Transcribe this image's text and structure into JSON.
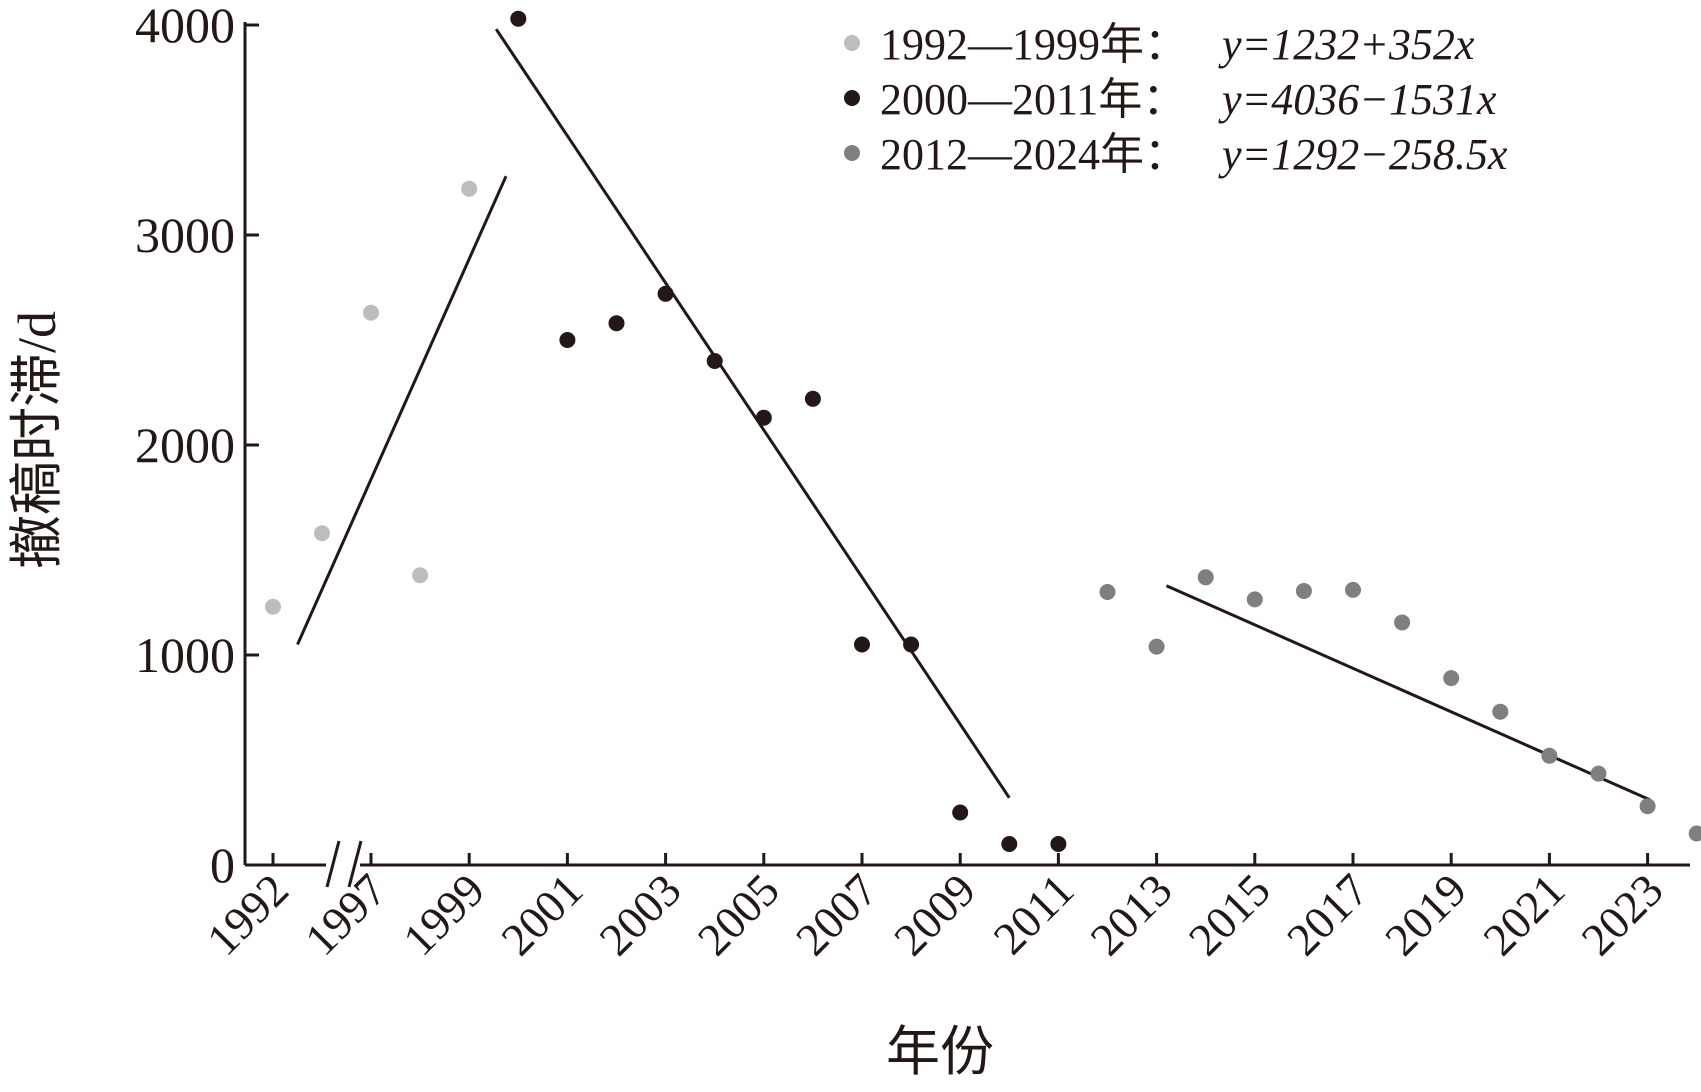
{
  "chart_data": {
    "type": "scatter",
    "xlabel": "年份",
    "ylabel": "撤稿时滞/d",
    "ylim": [
      0,
      4000
    ],
    "y_ticks": [
      "0",
      "1000",
      "2000",
      "3000",
      "4000"
    ],
    "x_tick_labels": [
      "1992",
      "1997",
      "1999",
      "2001",
      "2003",
      "2005",
      "2007",
      "2009",
      "2011",
      "2013",
      "2015",
      "2017",
      "2019",
      "2021",
      "2023"
    ],
    "x_axis_break": "between 1992 and 1997",
    "legend_position": "top-right",
    "grid": false,
    "series": [
      {
        "name": "1992—1999年：",
        "equation": "y=1232+352x",
        "color": "#bdbdbd",
        "points": [
          {
            "year": 1992,
            "value": 1230
          },
          {
            "year": 1996,
            "value": 1580
          },
          {
            "year": 1997,
            "value": 2630
          },
          {
            "year": 1998,
            "value": 1380
          },
          {
            "year": 1999,
            "value": 3220
          }
        ],
        "fit_line": {
          "start": {
            "year": 1992.5,
            "value": 1050
          },
          "end": {
            "year": 1999.75,
            "value": 3280
          }
        }
      },
      {
        "name": "2000—2011年：",
        "equation": "y=4036−1531x",
        "color": "#231815",
        "points": [
          {
            "year": 2000,
            "value": 4030
          },
          {
            "year": 2001,
            "value": 2500
          },
          {
            "year": 2002,
            "value": 2580
          },
          {
            "year": 2003,
            "value": 2720
          },
          {
            "year": 2004,
            "value": 2400
          },
          {
            "year": 2005,
            "value": 2130
          },
          {
            "year": 2006,
            "value": 2220
          },
          {
            "year": 2007,
            "value": 1050
          },
          {
            "year": 2008,
            "value": 1050
          },
          {
            "year": 2009,
            "value": 250
          },
          {
            "year": 2010,
            "value": 100
          },
          {
            "year": 2011,
            "value": 100
          }
        ],
        "fit_line": {
          "start": {
            "year": 1999.55,
            "value": 3980
          },
          "end": {
            "year": 2010,
            "value": 320
          }
        }
      },
      {
        "name": "2012—2024年：",
        "equation": "y=1292−258.5x",
        "color": "#7f7f7f",
        "points": [
          {
            "year": 2012,
            "value": 1300
          },
          {
            "year": 2013,
            "value": 1040
          },
          {
            "year": 2014,
            "value": 1370
          },
          {
            "year": 2015,
            "value": 1265
          },
          {
            "year": 2016,
            "value": 1305
          },
          {
            "year": 2017,
            "value": 1310
          },
          {
            "year": 2018,
            "value": 1155
          },
          {
            "year": 2019,
            "value": 890
          },
          {
            "year": 2020,
            "value": 730
          },
          {
            "year": 2021,
            "value": 520
          },
          {
            "year": 2022,
            "value": 435
          },
          {
            "year": 2023,
            "value": 280
          },
          {
            "year": 2024,
            "value": 150
          }
        ],
        "fit_line": {
          "start": {
            "year": 2013.2,
            "value": 1330
          },
          "end": {
            "year": 2023.05,
            "value": 310
          }
        }
      }
    ]
  }
}
